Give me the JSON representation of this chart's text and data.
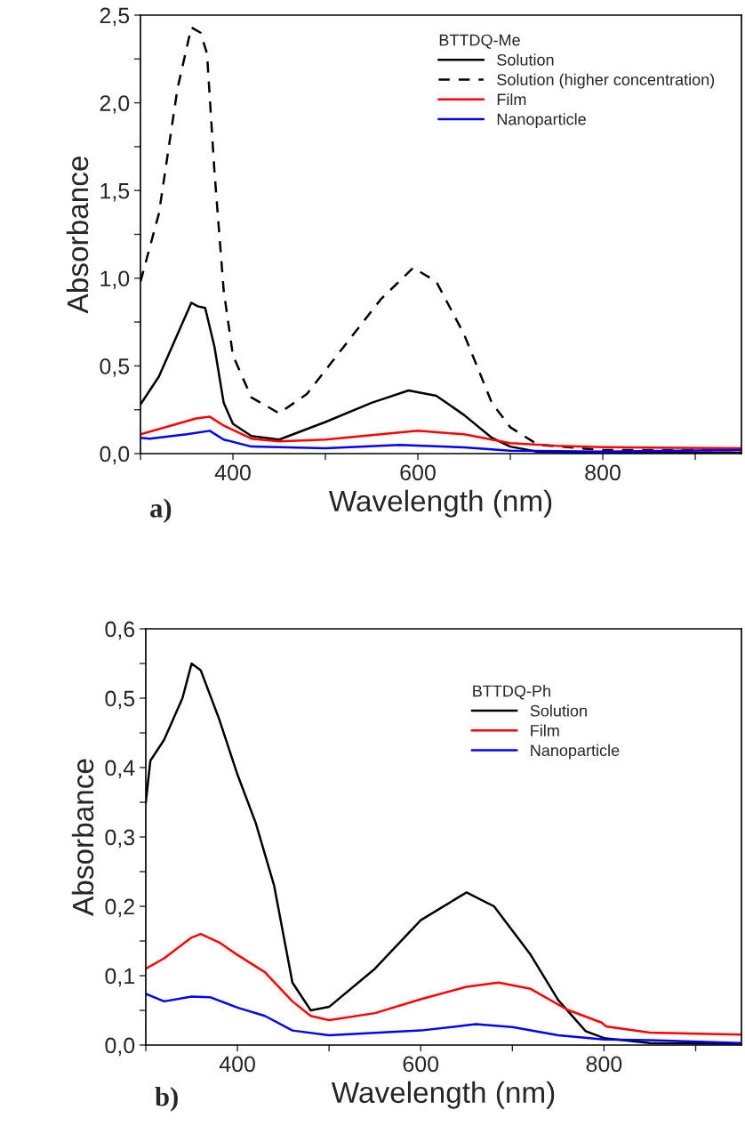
{
  "chart_data": [
    {
      "type": "line",
      "xlabel": "Wavelength (nm)",
      "ylabel": "Absorbance",
      "legend_title": "BTTDQ-Me",
      "legend": "top right",
      "annotations": [
        "a)"
      ],
      "xlim": [
        300,
        950
      ],
      "xticks": [
        {
          "value": 300,
          "label": null
        },
        400,
        {
          "value": 500,
          "label": null
        },
        600,
        {
          "value": 700,
          "label": null
        },
        800,
        {
          "value": 900,
          "label": null
        }
      ],
      "ylim": [
        0,
        2.5
      ],
      "yticks": [
        {
          "value": 0,
          "label": "0,0"
        },
        {
          "value": 0.25,
          "label": null
        },
        {
          "value": 0.5,
          "label": "0,5"
        },
        {
          "value": 0.75,
          "label": null
        },
        {
          "value": 1.0,
          "label": "1,0"
        },
        {
          "value": 1.25,
          "label": null
        },
        {
          "value": 1.5,
          "label": "1,5"
        },
        {
          "value": 1.75,
          "label": null
        },
        {
          "value": 2.0,
          "label": "2,0"
        },
        {
          "value": 2.25,
          "label": null
        },
        {
          "value": 2.5,
          "label": "2,5"
        }
      ],
      "grid": false,
      "series": [
        {
          "name": "Solution",
          "color": "#000000",
          "line_style": "solid",
          "x": [
            300,
            320,
            340,
            355,
            362,
            370,
            380,
            390,
            400,
            420,
            450,
            500,
            550,
            590,
            620,
            650,
            680,
            700,
            730,
            800,
            950
          ],
          "values": [
            0.28,
            0.44,
            0.68,
            0.86,
            0.84,
            0.83,
            0.61,
            0.29,
            0.17,
            0.1,
            0.08,
            0.18,
            0.29,
            0.36,
            0.33,
            0.22,
            0.09,
            0.04,
            0.01,
            0.005,
            0.005
          ]
        },
        {
          "name": "Solution (higher concentration)",
          "color": "#000000",
          "line_style": "dashed",
          "x": [
            300,
            320,
            340,
            355,
            365,
            372,
            380,
            390,
            400,
            420,
            450,
            480,
            520,
            560,
            595,
            620,
            650,
            680,
            700,
            730,
            800,
            950
          ],
          "values": [
            0.98,
            1.37,
            2.08,
            2.43,
            2.4,
            2.28,
            1.61,
            0.93,
            0.56,
            0.32,
            0.23,
            0.34,
            0.61,
            0.88,
            1.06,
            0.98,
            0.68,
            0.29,
            0.15,
            0.05,
            0.02,
            0.02
          ]
        },
        {
          "name": "Film",
          "color": "#ff0000",
          "line_style": "solid",
          "x": [
            300,
            340,
            360,
            375,
            390,
            420,
            450,
            500,
            600,
            650,
            700,
            750,
            800,
            950
          ],
          "values": [
            0.11,
            0.17,
            0.2,
            0.21,
            0.16,
            0.085,
            0.07,
            0.08,
            0.13,
            0.11,
            0.06,
            0.045,
            0.037,
            0.03
          ]
        },
        {
          "name": "Nanoparticle",
          "color": "#0000ff",
          "line_style": "solid",
          "x": [
            300,
            310,
            350,
            375,
            390,
            420,
            500,
            580,
            650,
            700,
            800,
            950
          ],
          "values": [
            0.09,
            0.085,
            0.11,
            0.13,
            0.08,
            0.04,
            0.03,
            0.05,
            0.035,
            0.017,
            0.012,
            0.02
          ]
        }
      ]
    },
    {
      "type": "line",
      "xlabel": "Wavelength (nm)",
      "ylabel": "Absorbance",
      "legend_title": "BTTDQ-Ph",
      "legend": "top right",
      "annotations": [
        "b)"
      ],
      "xlim": [
        300,
        950
      ],
      "xticks": [
        {
          "value": 300,
          "label": null
        },
        400,
        {
          "value": 500,
          "label": null
        },
        600,
        {
          "value": 700,
          "label": null
        },
        800,
        {
          "value": 900,
          "label": null
        }
      ],
      "ylim": [
        0,
        0.6
      ],
      "yticks": [
        {
          "value": 0,
          "label": "0,0"
        },
        {
          "value": 0.05,
          "label": null
        },
        {
          "value": 0.1,
          "label": "0,1"
        },
        {
          "value": 0.15,
          "label": null
        },
        {
          "value": 0.2,
          "label": "0,2"
        },
        {
          "value": 0.25,
          "label": null
        },
        {
          "value": 0.3,
          "label": "0,3"
        },
        {
          "value": 0.35,
          "label": null
        },
        {
          "value": 0.4,
          "label": "0,4"
        },
        {
          "value": 0.45,
          "label": null
        },
        {
          "value": 0.5,
          "label": "0,5"
        },
        {
          "value": 0.55,
          "label": null
        },
        {
          "value": 0.6,
          "label": "0,6"
        }
      ],
      "grid": false,
      "series": [
        {
          "name": "Solution",
          "color": "#000000",
          "line_style": "solid",
          "x": [
            300,
            305,
            320,
            340,
            350,
            360,
            380,
            400,
            420,
            440,
            460,
            480,
            500,
            550,
            600,
            650,
            680,
            720,
            750,
            780,
            800,
            850,
            950
          ],
          "values": [
            0.35,
            0.41,
            0.44,
            0.5,
            0.55,
            0.54,
            0.47,
            0.39,
            0.32,
            0.23,
            0.09,
            0.05,
            0.055,
            0.11,
            0.18,
            0.22,
            0.2,
            0.13,
            0.065,
            0.02,
            0.01,
            0.003,
            0.002
          ]
        },
        {
          "name": "Film",
          "color": "#ff0000",
          "line_style": "solid",
          "x": [
            300,
            320,
            350,
            360,
            380,
            400,
            430,
            460,
            480,
            500,
            550,
            600,
            650,
            685,
            720,
            760,
            798,
            802,
            850,
            950
          ],
          "values": [
            0.11,
            0.125,
            0.155,
            0.16,
            0.148,
            0.13,
            0.105,
            0.063,
            0.042,
            0.036,
            0.046,
            0.066,
            0.084,
            0.09,
            0.081,
            0.051,
            0.032,
            0.027,
            0.018,
            0.015
          ]
        },
        {
          "name": "Nanoparticle",
          "color": "#0000ff",
          "line_style": "solid",
          "x": [
            300,
            320,
            350,
            370,
            400,
            430,
            460,
            500,
            600,
            660,
            700,
            750,
            800,
            850,
            950
          ],
          "values": [
            0.074,
            0.063,
            0.07,
            0.069,
            0.054,
            0.042,
            0.021,
            0.014,
            0.021,
            0.03,
            0.026,
            0.014,
            0.008,
            0.007,
            0.003
          ]
        }
      ]
    }
  ]
}
